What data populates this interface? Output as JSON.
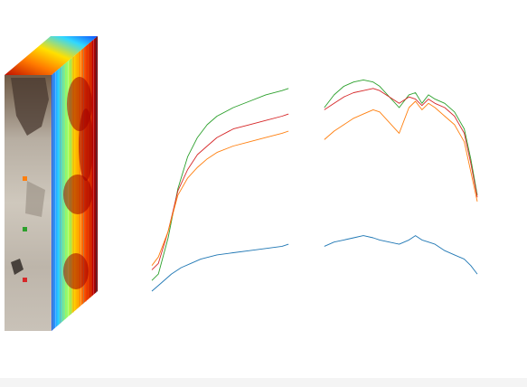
{
  "figure": {
    "kind": "hyperspectral-cube-with-spectral-signatures",
    "marker_colors": {
      "orange": "#ff7f0e",
      "green": "#2ca02c",
      "red": "#d62728"
    },
    "cube_colormap": [
      "#00007f",
      "#0050ff",
      "#00c8ff",
      "#50ff9f",
      "#f0ff10",
      "#ff9a00",
      "#ff2000",
      "#7f0000"
    ]
  },
  "chart_data": {
    "type": "line",
    "title": "",
    "xlabel": "",
    "ylabel": "",
    "axes_visible": false,
    "grid": false,
    "x_range": [
      0,
      100
    ],
    "y_range": [
      0,
      100
    ],
    "gaps_x": [
      [
        42.5,
        52.5
      ],
      [
        74.5,
        76.5
      ]
    ],
    "series": [
      {
        "color": "#2ca02c",
        "marker": "green",
        "points": [
          [
            0,
            5
          ],
          [
            2,
            8
          ],
          [
            5,
            25
          ],
          [
            8,
            48
          ],
          [
            11,
            63
          ],
          [
            14,
            72
          ],
          [
            17,
            78
          ],
          [
            20,
            82
          ],
          [
            25,
            86
          ],
          [
            30,
            89
          ],
          [
            35,
            92
          ],
          [
            40,
            94
          ],
          [
            42,
            95
          ],
          [
            53,
            86
          ],
          [
            56,
            92
          ],
          [
            59,
            96
          ],
          [
            62,
            98
          ],
          [
            65,
            99
          ],
          [
            68,
            98
          ],
          [
            70,
            96
          ],
          [
            76,
            86
          ],
          [
            79,
            92
          ],
          [
            81,
            93
          ],
          [
            83,
            88
          ],
          [
            85,
            92
          ],
          [
            87,
            90
          ],
          [
            90,
            88
          ],
          [
            93,
            84
          ],
          [
            96,
            76
          ],
          [
            98,
            62
          ],
          [
            100,
            45
          ]
        ]
      },
      {
        "color": "#d62728",
        "marker": "red",
        "points": [
          [
            0,
            10
          ],
          [
            2,
            13
          ],
          [
            5,
            28
          ],
          [
            8,
            47
          ],
          [
            11,
            57
          ],
          [
            14,
            64
          ],
          [
            17,
            68
          ],
          [
            20,
            72
          ],
          [
            25,
            76
          ],
          [
            30,
            78
          ],
          [
            35,
            80
          ],
          [
            40,
            82
          ],
          [
            42,
            83
          ],
          [
            53,
            85
          ],
          [
            56,
            88
          ],
          [
            59,
            91
          ],
          [
            62,
            93
          ],
          [
            65,
            94
          ],
          [
            68,
            95
          ],
          [
            70,
            94
          ],
          [
            76,
            88
          ],
          [
            79,
            91
          ],
          [
            81,
            90
          ],
          [
            83,
            87
          ],
          [
            85,
            90
          ],
          [
            87,
            88
          ],
          [
            90,
            86
          ],
          [
            93,
            82
          ],
          [
            96,
            74
          ],
          [
            98,
            60
          ],
          [
            100,
            44
          ]
        ]
      },
      {
        "color": "#ff7f0e",
        "marker": "orange",
        "points": [
          [
            0,
            12
          ],
          [
            2,
            16
          ],
          [
            5,
            28
          ],
          [
            8,
            45
          ],
          [
            11,
            53
          ],
          [
            14,
            58
          ],
          [
            17,
            62
          ],
          [
            20,
            65
          ],
          [
            25,
            68
          ],
          [
            30,
            70
          ],
          [
            35,
            72
          ],
          [
            40,
            74
          ],
          [
            42,
            75
          ],
          [
            53,
            71
          ],
          [
            56,
            75
          ],
          [
            59,
            78
          ],
          [
            62,
            81
          ],
          [
            65,
            83
          ],
          [
            68,
            85
          ],
          [
            70,
            84
          ],
          [
            76,
            74
          ],
          [
            79,
            86
          ],
          [
            81,
            89
          ],
          [
            83,
            85
          ],
          [
            85,
            88
          ],
          [
            87,
            86
          ],
          [
            90,
            82
          ],
          [
            93,
            78
          ],
          [
            96,
            70
          ],
          [
            98,
            56
          ],
          [
            100,
            42
          ]
        ]
      },
      {
        "color": "#1f77b4",
        "marker": "",
        "points": [
          [
            0,
            0
          ],
          [
            3,
            4
          ],
          [
            6,
            8
          ],
          [
            9,
            11
          ],
          [
            12,
            13
          ],
          [
            15,
            15
          ],
          [
            20,
            17
          ],
          [
            25,
            18
          ],
          [
            30,
            19
          ],
          [
            35,
            20
          ],
          [
            40,
            21
          ],
          [
            42,
            22
          ],
          [
            53,
            21
          ],
          [
            56,
            23
          ],
          [
            59,
            24
          ],
          [
            62,
            25
          ],
          [
            65,
            26
          ],
          [
            68,
            25
          ],
          [
            70,
            24
          ],
          [
            76,
            22
          ],
          [
            79,
            24
          ],
          [
            81,
            26
          ],
          [
            83,
            24
          ],
          [
            85,
            23
          ],
          [
            87,
            22
          ],
          [
            90,
            19
          ],
          [
            93,
            17
          ],
          [
            96,
            15
          ],
          [
            98,
            12
          ],
          [
            100,
            8
          ]
        ]
      }
    ]
  }
}
